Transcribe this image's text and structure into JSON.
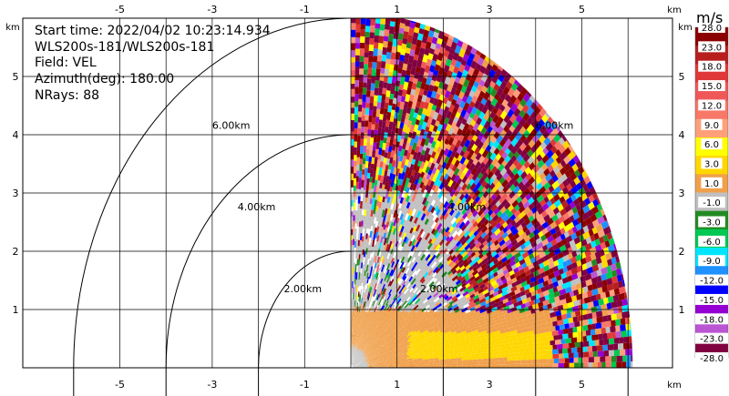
{
  "info": {
    "start_time": "Start time: 2022/04/02 10:23:14.934",
    "station": "WLS200s-181/WLS200s-181",
    "field": "Field: VEL",
    "azimuth": "Azimuth(deg): 180.00",
    "nrays": "NRays: 88"
  },
  "colorbar": {
    "unit": "m/s",
    "labels": [
      "28.0",
      "23.0",
      "18.0",
      "15.0",
      "12.0",
      "9.0",
      "6.0",
      "3.0",
      "1.0",
      "-1.0",
      "-3.0",
      "-6.0",
      "-9.0",
      "-12.0",
      "-15.0",
      "-18.0",
      "-23.0",
      "-28.0"
    ],
    "colors": [
      "#8b0000",
      "#b81e1e",
      "#e03838",
      "#f05858",
      "#f87868",
      "#ffa07a",
      "#ffff00",
      "#ffd700",
      "#f0a04b",
      "#c0c0c0",
      "#228b22",
      "#00c853",
      "#00e5ff",
      "#1e90ff",
      "#0000ff",
      "#9400d3",
      "#ba55d3",
      "#800040"
    ]
  },
  "chart_data": {
    "type": "heatmap",
    "title": "",
    "xlabel": "km",
    "ylabel": "km",
    "xlim": [
      -6,
      6
    ],
    "ylim": [
      0,
      6
    ],
    "x_ticks": [
      -5,
      -3,
      -1,
      1,
      3,
      5
    ],
    "y_ticks": [
      1,
      2,
      3,
      4,
      5
    ],
    "grid": true,
    "range_rings": [
      {
        "label": "2.00km",
        "radius_km": 2
      },
      {
        "label": "4.00km",
        "radius_km": 4
      },
      {
        "label": "6.00km",
        "radius_km": 6
      }
    ],
    "field": "VEL",
    "units": "m/s"
  }
}
